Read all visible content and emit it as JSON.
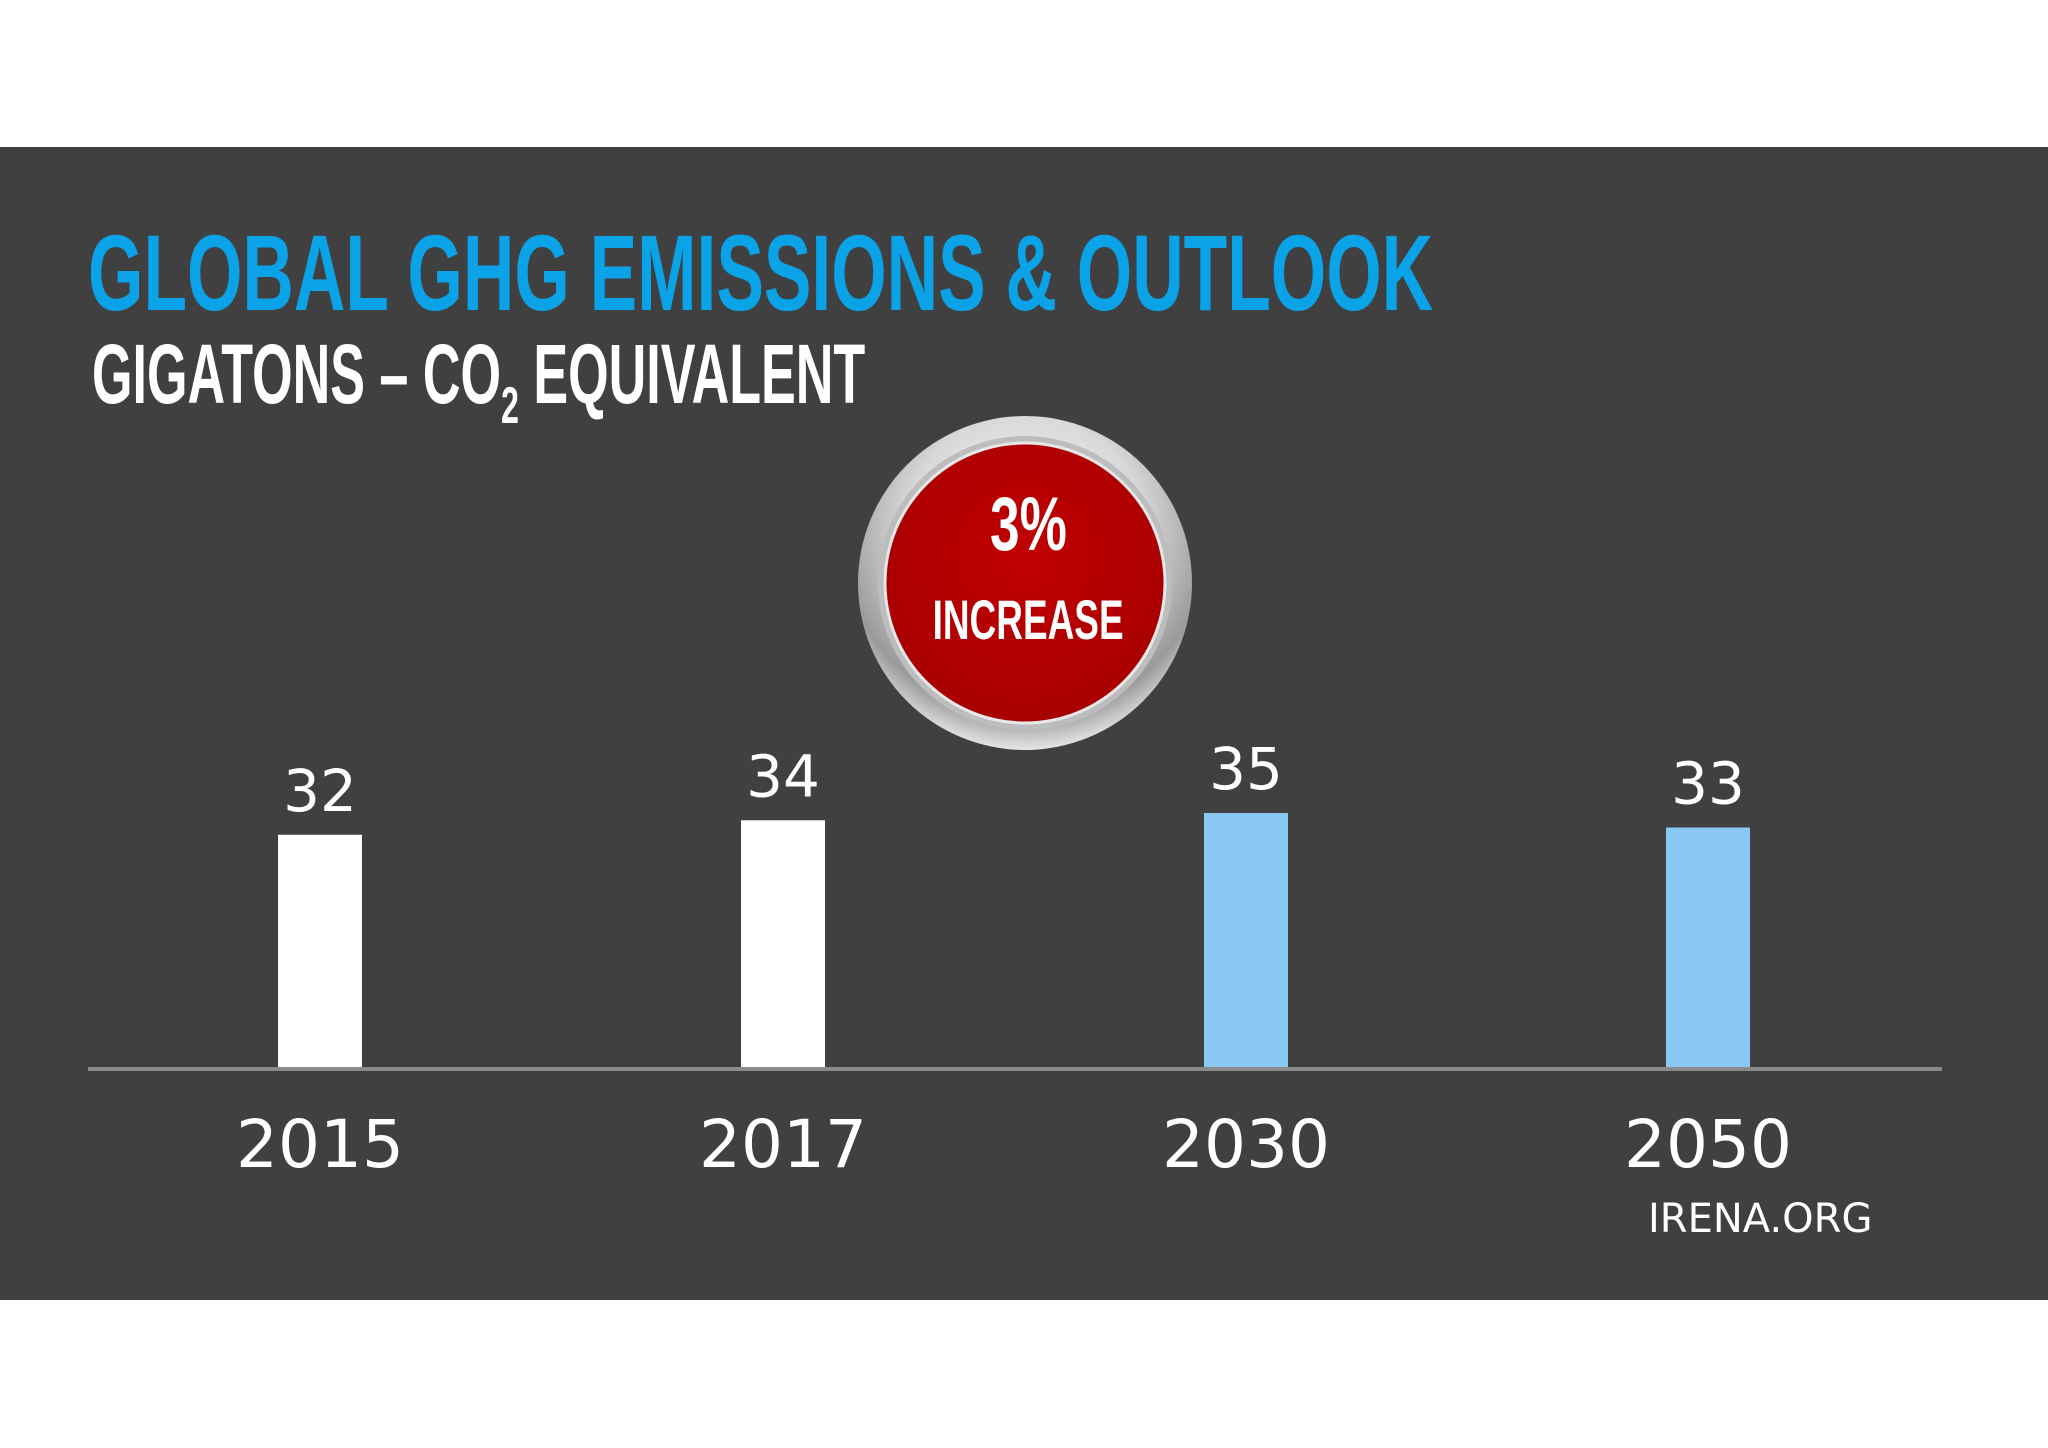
{
  "header": {
    "title": "GLOBAL GHG EMISSIONS & OUTLOOK",
    "subtitle_prefix": "GIGATONS – CO",
    "subtitle_subscript": "2",
    "subtitle_suffix": " EQUIVALENT"
  },
  "badge": {
    "value": "3%",
    "label": "INCREASE",
    "fill_color": "#c00000"
  },
  "chart_data": {
    "type": "bar",
    "categories": [
      "2015",
      "2017",
      "2030",
      "2050"
    ],
    "values": [
      32,
      34,
      35,
      33
    ],
    "value_labels": [
      "32",
      "34",
      "35",
      "33"
    ],
    "colors": [
      "#ffffff",
      "#ffffff",
      "#89c8f2",
      "#89c8f2"
    ],
    "title": "",
    "xlabel": "",
    "ylabel": "",
    "ylim": [
      0,
      35
    ],
    "grid": false,
    "legend": "none"
  },
  "footer": {
    "credit": "IRENA.ORG"
  }
}
